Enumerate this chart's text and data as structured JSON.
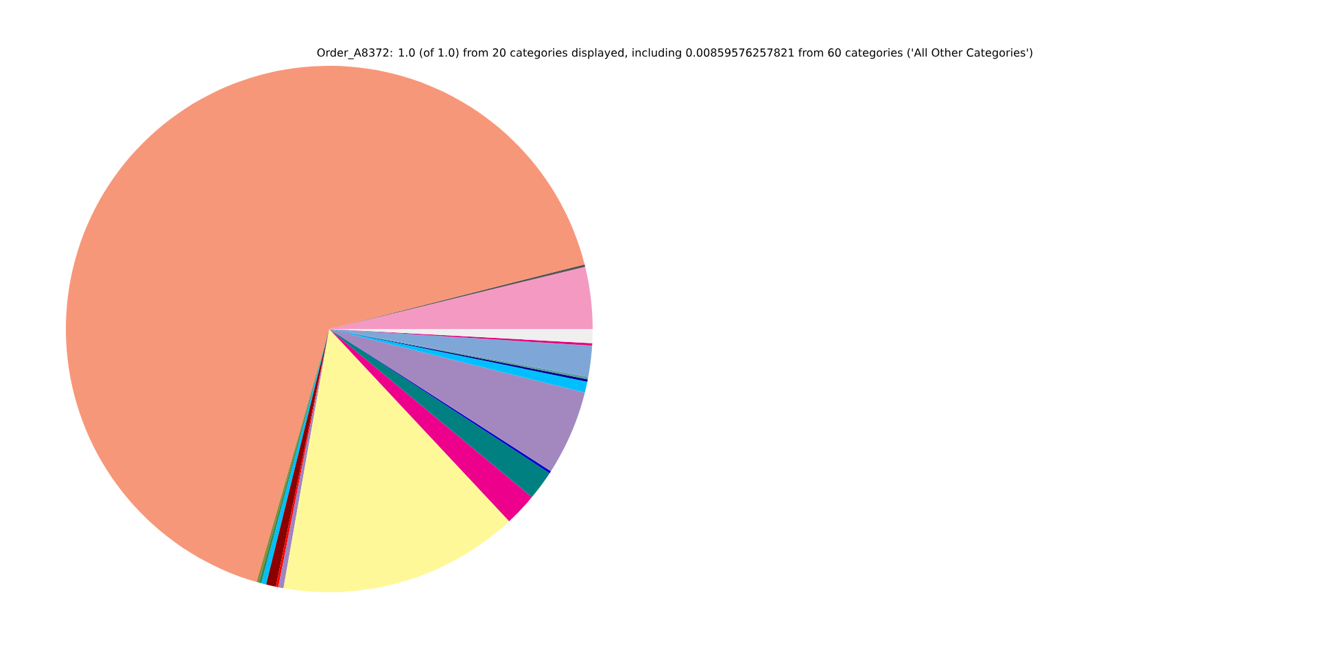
{
  "chart_data": {
    "type": "pie",
    "title": "Order_A8372: 1.0 (of 1.0) from 20 categories displayed, including 0.00859576257821 from 60 categories ('All Other Categories')",
    "categories": [
      null,
      null,
      null,
      null,
      null,
      null,
      null,
      null,
      null,
      null,
      null,
      null,
      null,
      null,
      null,
      null,
      null,
      null,
      null,
      null
    ],
    "values": [
      3.8,
      0.15,
      66.6,
      0.15,
      0.15,
      0.3,
      0.6,
      0.15,
      0.32,
      14.75,
      2.0,
      1.8,
      0.15,
      5.2,
      0.67,
      0.15,
      0.15,
      1.9,
      0.15,
      0.86
    ],
    "colors": [
      "#f49ac2",
      "#555555",
      "#f79779",
      "#8b8b3a",
      "#2e8b57",
      "#00bfff",
      "#8b0000",
      "#ff0000",
      "#a085c0",
      "#fff899",
      "#ec008c",
      "#008080",
      "#0000cd",
      "#a388c0",
      "#00bfff",
      "#00008b",
      "#5f9ea0",
      "#7ea7d8",
      "#e6007e",
      "#efefef"
    ]
  }
}
